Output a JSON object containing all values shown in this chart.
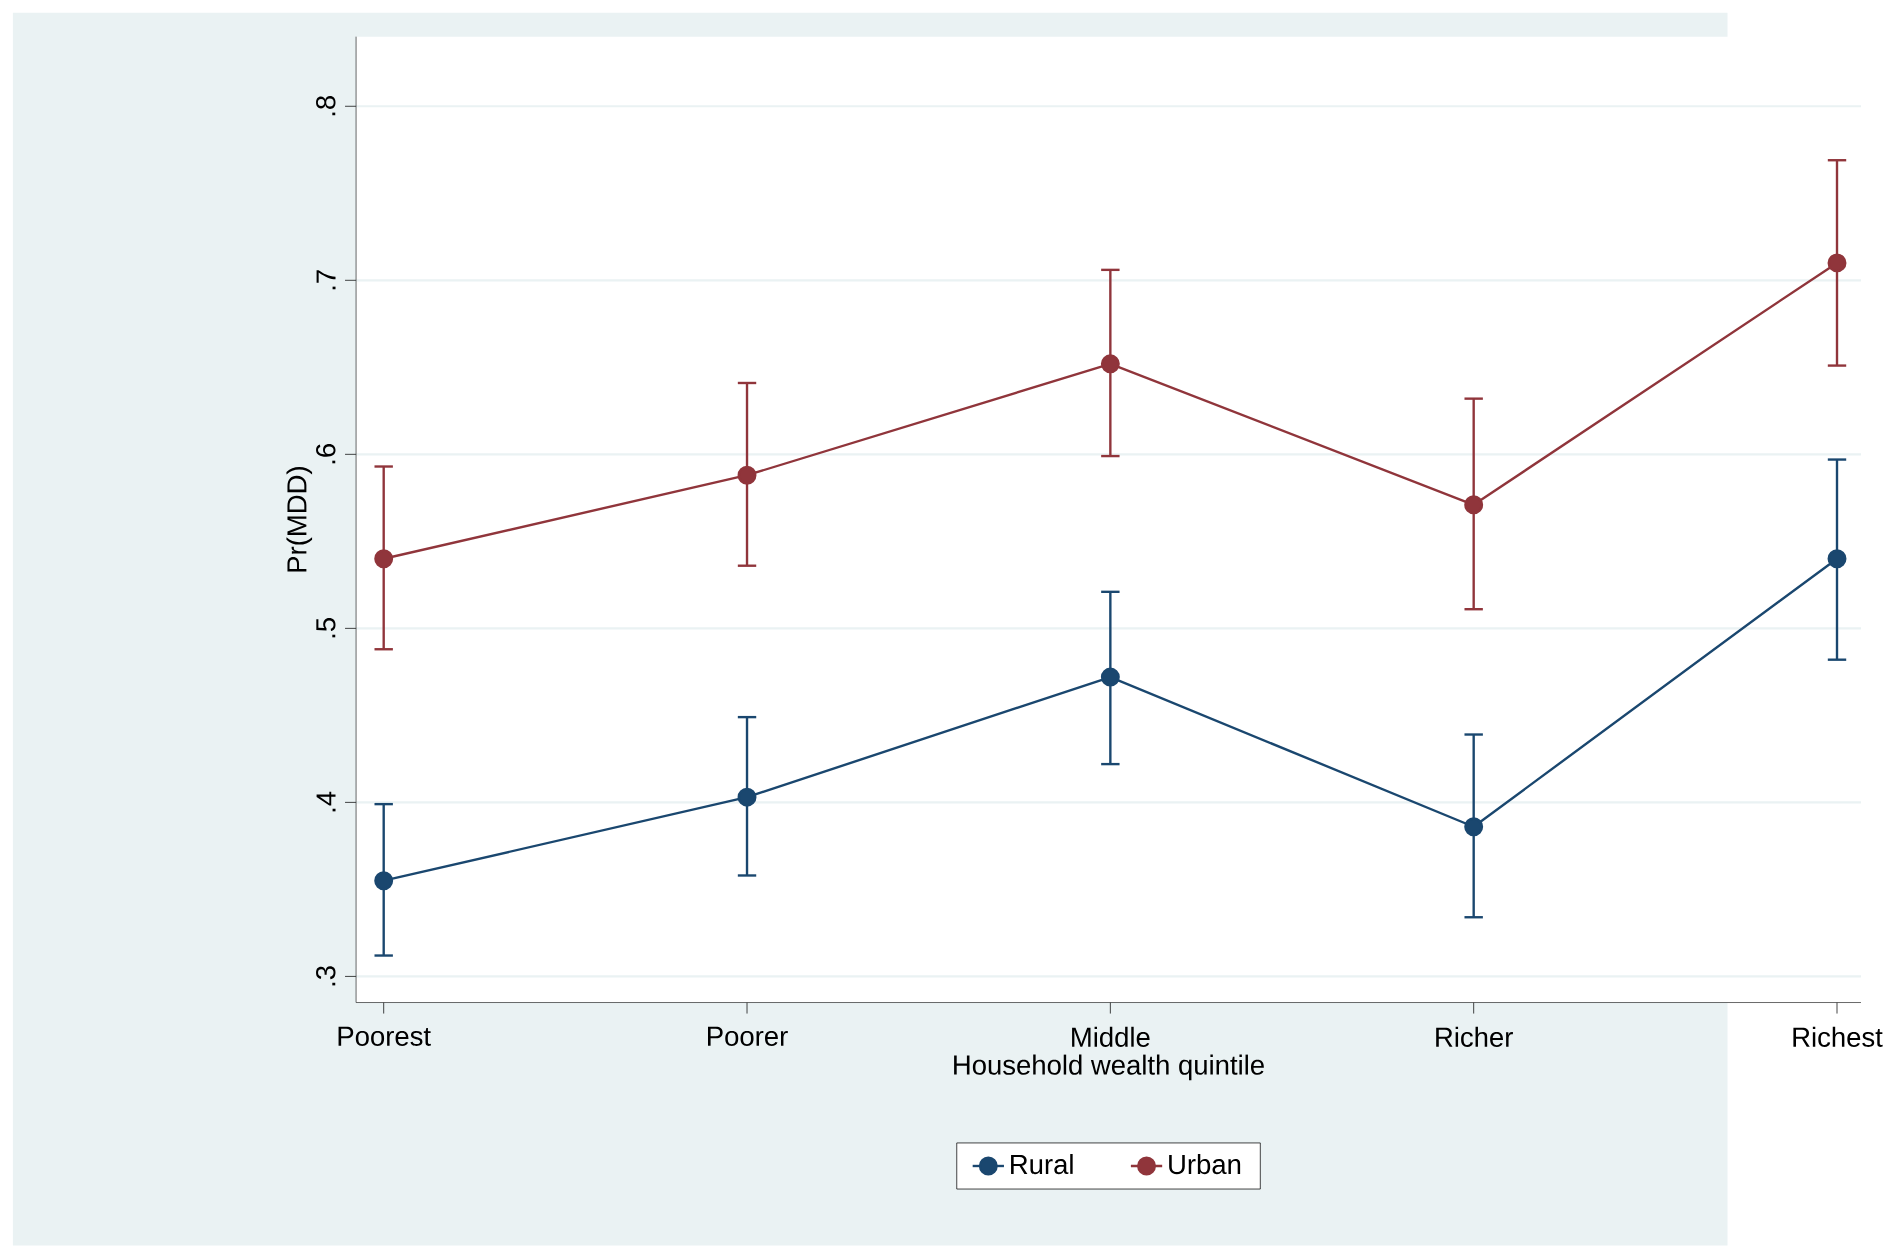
{
  "chart_data": {
    "type": "line",
    "xlabel": "Household wealth quintile",
    "ylabel": "Pr(MDD)",
    "categories": [
      "Poorest",
      "Poorer",
      "Middle",
      "Richer",
      "Richest"
    ],
    "series": [
      {
        "name": "Rural",
        "color": "#1a476f",
        "values": [
          0.355,
          0.403,
          0.472,
          0.386,
          0.54
        ],
        "errors": [
          [
            0.312,
            0.399
          ],
          [
            0.358,
            0.449
          ],
          [
            0.422,
            0.521
          ],
          [
            0.334,
            0.439
          ],
          [
            0.482,
            0.597
          ]
        ]
      },
      {
        "name": "Urban",
        "color": "#90353b",
        "values": [
          0.54,
          0.588,
          0.652,
          0.571,
          0.71
        ],
        "errors": [
          [
            0.488,
            0.593
          ],
          [
            0.536,
            0.641
          ],
          [
            0.599,
            0.706
          ],
          [
            0.511,
            0.632
          ],
          [
            0.651,
            0.769
          ]
        ]
      }
    ],
    "ylim": [
      0.285,
      0.84
    ],
    "yticks": [
      {
        "value": 0.3,
        "label": ".3"
      },
      {
        "value": 0.4,
        "label": ".4"
      },
      {
        "value": 0.5,
        "label": ".5"
      },
      {
        "value": 0.6,
        "label": ".6"
      },
      {
        "value": 0.7,
        "label": ".7"
      },
      {
        "value": 0.8,
        "label": ".8"
      }
    ],
    "grid": "y",
    "legend": "bottom",
    "marker": "circle",
    "line_style": "solid"
  }
}
